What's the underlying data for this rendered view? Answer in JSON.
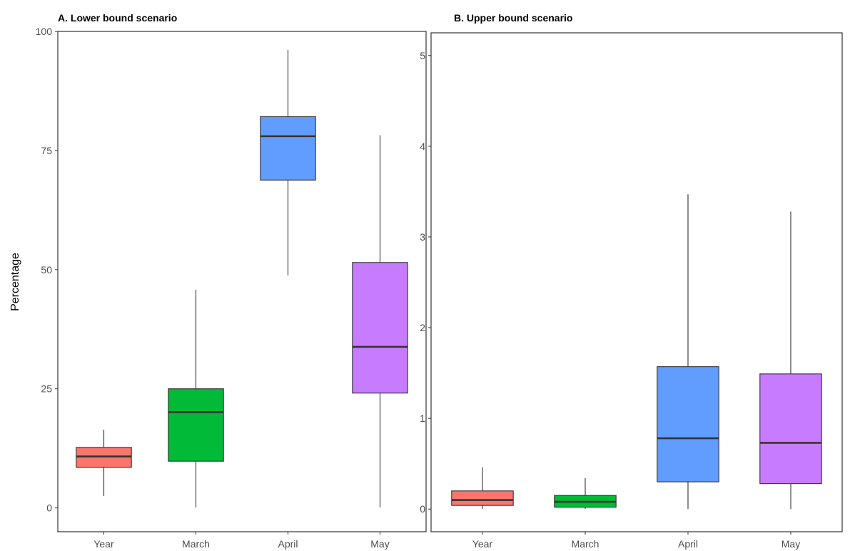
{
  "ylabel": "Percentage",
  "colors": {
    "Year": "#F8766D",
    "March": "#00BA38",
    "April": "#619CFF",
    "May": "#C77CFF",
    "stroke": "#333333"
  },
  "chart_data": [
    {
      "type": "boxplot",
      "title": "A. Lower bound scenario",
      "xlabel": "",
      "ylabel": "Percentage",
      "ylim": [
        -5,
        100
      ],
      "yticks": [
        "0",
        "25",
        "50",
        "75",
        "100"
      ],
      "grid": false,
      "legend": "none",
      "categories": [
        "Year",
        "March",
        "April",
        "May"
      ],
      "boxes": [
        {
          "category": "Year",
          "min": 2.5,
          "q1": 8.5,
          "median": 10.8,
          "q3": 12.7,
          "max": 16.4
        },
        {
          "category": "March",
          "min": 0.1,
          "q1": 9.8,
          "median": 20.1,
          "q3": 25.0,
          "max": 45.8
        },
        {
          "category": "April",
          "min": 48.8,
          "q1": 68.8,
          "median": 78.0,
          "q3": 82.1,
          "max": 96.1
        },
        {
          "category": "May",
          "min": 0.1,
          "q1": 24.1,
          "median": 33.8,
          "q3": 51.5,
          "max": 78.2
        }
      ]
    },
    {
      "type": "boxplot",
      "title": "B. Upper bound scenario",
      "xlabel": "",
      "ylabel": "",
      "ylim": [
        -0.25,
        5.25
      ],
      "yticks": [
        "0",
        "1",
        "2",
        "3",
        "4",
        "5"
      ],
      "grid": false,
      "legend": "none",
      "categories": [
        "Year",
        "March",
        "April",
        "May"
      ],
      "boxes": [
        {
          "category": "Year",
          "min": 0.0,
          "q1": 0.04,
          "median": 0.1,
          "q3": 0.2,
          "max": 0.46
        },
        {
          "category": "March",
          "min": 0.0,
          "q1": 0.02,
          "median": 0.08,
          "q3": 0.15,
          "max": 0.34
        },
        {
          "category": "April",
          "min": 0.0,
          "q1": 0.3,
          "median": 0.78,
          "q3": 1.57,
          "max": 3.47
        },
        {
          "category": "May",
          "min": 0.0,
          "q1": 0.28,
          "median": 0.73,
          "q3": 1.49,
          "max": 3.28
        }
      ]
    }
  ]
}
